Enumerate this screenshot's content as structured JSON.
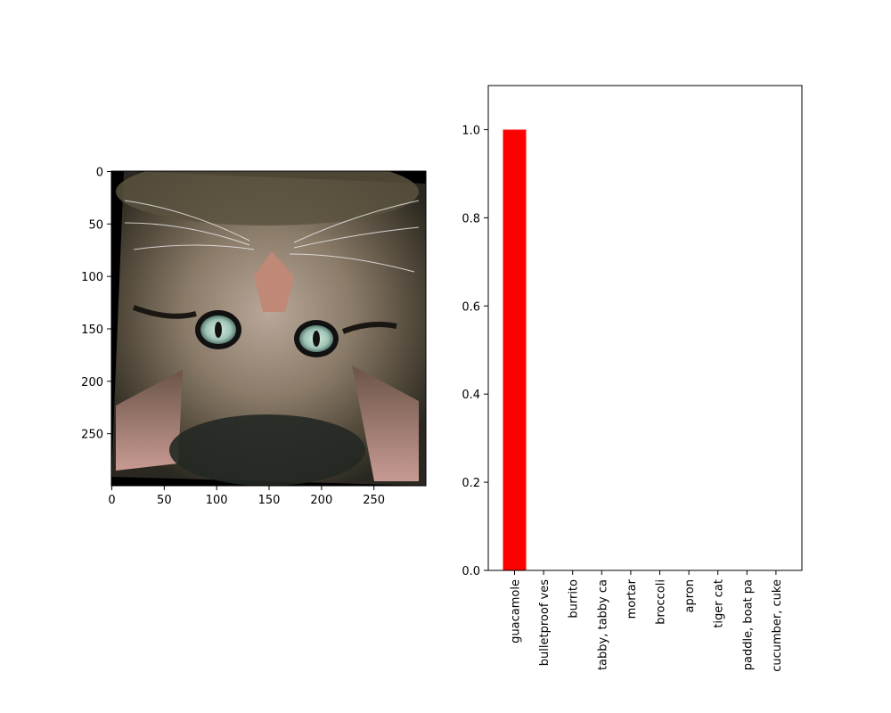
{
  "chart_data": [
    {
      "type": "image",
      "description_note": "",
      "x_ticks": [
        "0",
        "50",
        "100",
        "150",
        "200",
        "250"
      ],
      "y_ticks": [
        "0",
        "50",
        "100",
        "150",
        "200",
        "250"
      ],
      "xlim": [
        0,
        299
      ],
      "ylim": [
        299,
        0
      ],
      "image_icon": "cat-photo"
    },
    {
      "type": "bar",
      "categories": [
        "guacamole",
        "bulletproof ves",
        "burrito",
        "tabby, tabby ca",
        "mortar",
        "broccoli",
        "apron",
        "tiger cat",
        "paddle, boat pa",
        "cucumber, cuke"
      ],
      "values": [
        1.0,
        0.0,
        0.0,
        0.001,
        0.0,
        0.0,
        0.0,
        0.0,
        0.0,
        0.0
      ],
      "bar_colors": [
        "#ff0000",
        "#1f77b4",
        "#1f77b4",
        "#1f77b4",
        "#1f77b4",
        "#1f77b4",
        "#1f77b4",
        "#1f77b4",
        "#1f77b4",
        "#1f77b4"
      ],
      "y_ticks": [
        "0.0",
        "0.2",
        "0.4",
        "0.6",
        "0.8",
        "1.0"
      ],
      "ylim": [
        0,
        1.1
      ],
      "title": "",
      "xlabel": "",
      "ylabel": "",
      "grid": false
    }
  ]
}
